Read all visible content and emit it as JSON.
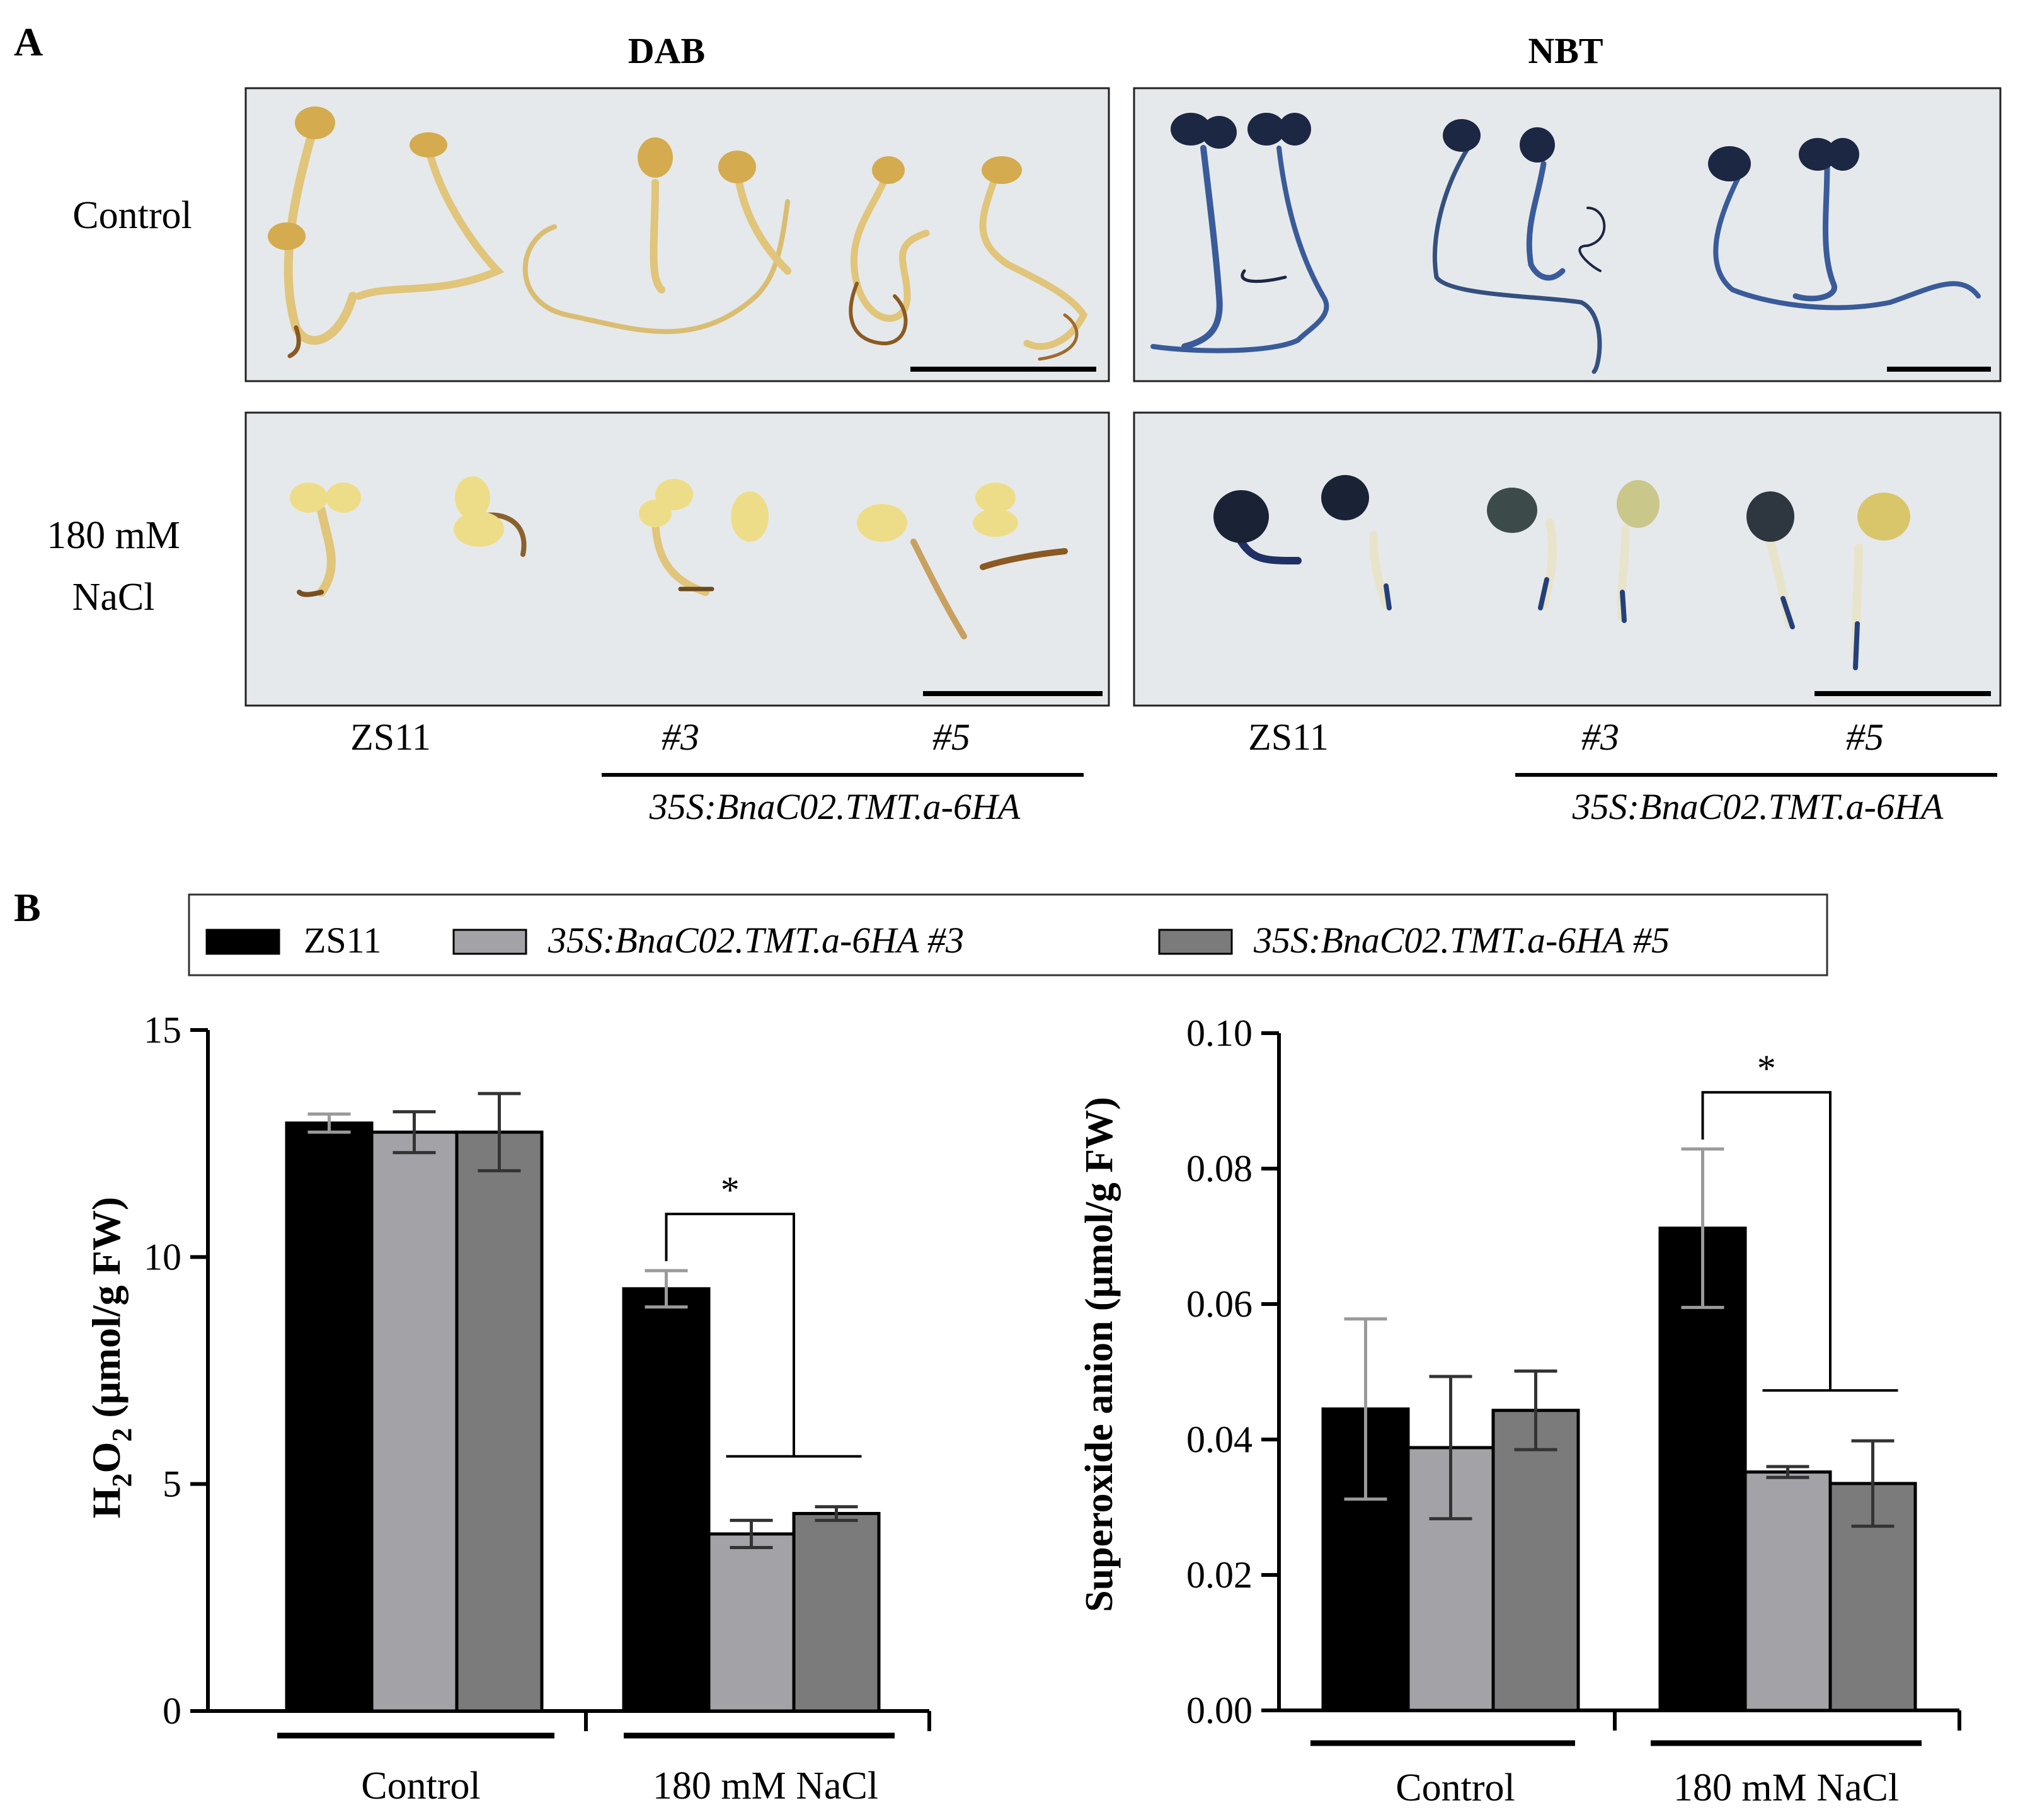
{
  "panel_a": {
    "label": "A",
    "stain_titles": [
      "DAB",
      "NBT"
    ],
    "row_labels": {
      "control": "Control",
      "salt_line1": "180 mM",
      "salt_line2": "NaCl"
    },
    "genotype_labels": {
      "wt": "ZS11",
      "line3": "#3",
      "line5": "#5",
      "construct": "35S:BnaC02.TMT.a-6HA"
    },
    "colors": {
      "photo_bg": "#e6e9eb",
      "dab_tissue": "#e0c57a",
      "dab_dark": "#8a5a22",
      "nbt_tissue": "#1c2744",
      "nbt_root": "#3a5b9a",
      "cotyledon_yellow": "#eedd88"
    }
  },
  "panel_b": {
    "label": "B",
    "legend": [
      {
        "label": "ZS11",
        "color": "#000000",
        "italic": false
      },
      {
        "label": "35S:BnaC02.TMT.a-6HA #3",
        "color": "#a2a2a7",
        "italic": true
      },
      {
        "label": "35S:BnaC02.TMT.a-6HA #5",
        "color": "#7b7b7b",
        "italic": true
      }
    ],
    "significance_mark": "*"
  },
  "chart_data": [
    {
      "type": "bar",
      "title": "",
      "ylabel_main": "H",
      "ylabel_sub": "2",
      "ylabel_o": "O",
      "ylabel_sub2": "2",
      "ylabel_rest": " (μmol/g FW)",
      "groups": [
        "Control",
        "180 mM NaCl"
      ],
      "series": [
        {
          "name": "ZS11",
          "values": [
            12.95,
            9.3
          ],
          "errors": [
            0.2,
            0.4
          ]
        },
        {
          "name": "35S:BnaC02.TMT.a-6HA #3",
          "values": [
            12.75,
            3.9
          ],
          "errors": [
            0.45,
            0.3
          ]
        },
        {
          "name": "35S:BnaC02.TMT.a-6HA #5",
          "values": [
            12.75,
            4.35
          ],
          "errors": [
            0.85,
            0.15
          ]
        }
      ],
      "ylim": [
        0,
        15
      ],
      "yticks": [
        "0",
        "5",
        "10",
        "15"
      ],
      "ytick_values": [
        0,
        5,
        10,
        15
      ],
      "annotations": [
        {
          "group": "180 mM NaCl",
          "text": "*"
        }
      ]
    },
    {
      "type": "bar",
      "title": "",
      "ylabel": "Superoxide anion (μmol/g FW)",
      "groups": [
        "Control",
        "180 mM NaCl"
      ],
      "series": [
        {
          "name": "ZS11",
          "values": [
            0.0445,
            0.0712
          ],
          "errors": [
            0.0133,
            0.0117
          ]
        },
        {
          "name": "35S:BnaC02.TMT.a-6HA #3",
          "values": [
            0.0388,
            0.0352
          ],
          "errors": [
            0.0105,
            0.0008
          ]
        },
        {
          "name": "35S:BnaC02.TMT.a-6HA #5",
          "values": [
            0.0443,
            0.0335
          ],
          "errors": [
            0.0058,
            0.0063
          ]
        }
      ],
      "ylim": [
        0,
        0.1
      ],
      "yticks": [
        "0.00",
        "0.02",
        "0.04",
        "0.06",
        "0.08",
        "0.10"
      ],
      "ytick_values": [
        0,
        0.02,
        0.04,
        0.06,
        0.08,
        0.1
      ],
      "annotations": [
        {
          "group": "180 mM NaCl",
          "text": "*"
        }
      ]
    }
  ]
}
